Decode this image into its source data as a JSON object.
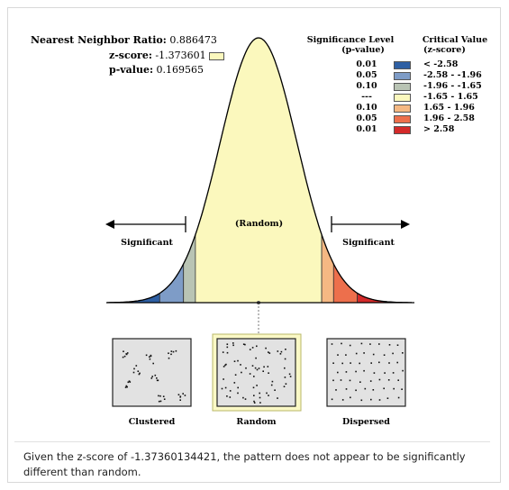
{
  "report": {
    "nn_ratio_label": "Nearest Neighbor Ratio:",
    "nn_ratio_value": "0.886473",
    "z_label": "z-score:",
    "z_value": "-1.373601",
    "p_label": "p-value:",
    "p_value": "0.169565"
  },
  "legend": {
    "sig_header_1": "Significance Level",
    "sig_header_2": "(p-value)",
    "crit_header_1": "Critical Value",
    "crit_header_2": "(z-score)",
    "rows": [
      {
        "p": "0.01",
        "crit": "< -2.58",
        "color": "#2e5fa3"
      },
      {
        "p": "0.05",
        "crit": "-2.58 - -1.96",
        "color": "#7e9cc7"
      },
      {
        "p": "0.10",
        "crit": "-1.96 - -1.65",
        "color": "#b9c4b4"
      },
      {
        "p": "---",
        "crit": "-1.65 - 1.65",
        "color": "#fbf8bd"
      },
      {
        "p": "0.10",
        "crit": "1.65 - 1.96",
        "color": "#f5b883"
      },
      {
        "p": "0.05",
        "crit": "1.96 - 2.58",
        "color": "#ed6f4c"
      },
      {
        "p": "0.01",
        "crit": "> 2.58",
        "color": "#d42a2a"
      }
    ]
  },
  "curve": {
    "center_label": "(Random)",
    "left_label": "Significant",
    "right_label": "Significant"
  },
  "patterns": {
    "clustered": "Clustered",
    "random": "Random",
    "dispersed": "Dispersed"
  },
  "summary": "Given the z-score of -1.37360134421, the pattern does not appear to be significantly different than random."
}
